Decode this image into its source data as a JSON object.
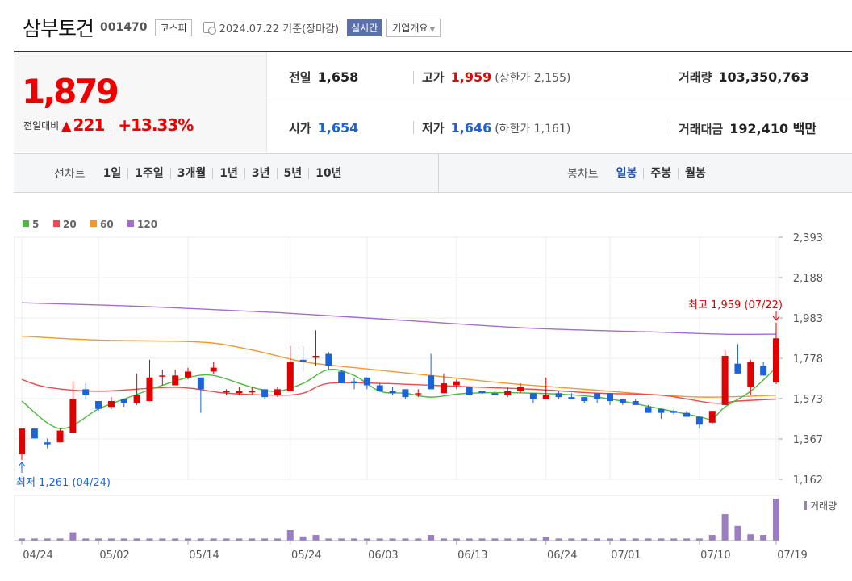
{
  "header": {
    "stock_name": "삼부토건",
    "code": "001470",
    "market": "코스피",
    "date_text": "2024.07.22  기준(장마감)",
    "realtime_button": "실시간",
    "company_button": "기업개요"
  },
  "quote": {
    "price": "1,879",
    "change_label": "전일대비",
    "change_icon": "up-triangle",
    "change_symbol": "▲",
    "change_value": "221",
    "change_percent": "+13.33%",
    "prev_close_label": "전일",
    "prev_close": "1,658",
    "high_label": "고가",
    "high": "1,959",
    "upper_limit": "(상한가 2,155)",
    "volume_label": "거래량",
    "volume": "103,350,763",
    "open_label": "시가",
    "open": "1,654",
    "low_label": "저가",
    "low": "1,646",
    "lower_limit": "(하한가 1,161)",
    "turnover_label": "거래대금",
    "turnover": "192,410 백만",
    "colors": {
      "up": "#e00000",
      "down": "#1a63d8"
    }
  },
  "tabs": {
    "line_label": "선차트",
    "periods": [
      "1일",
      "1주일",
      "3개월",
      "1년",
      "3년",
      "5년",
      "10년"
    ],
    "candle_label": "봉차트",
    "candles": [
      "일봉",
      "주봉",
      "월봉"
    ],
    "selected_candle": "일봉"
  },
  "chart_data": {
    "type": "candlestick",
    "legend": [
      {
        "name": "5",
        "color": "#4cbb3c"
      },
      {
        "name": "20",
        "color": "#ef4a4a"
      },
      {
        "name": "60",
        "color": "#f7962b"
      },
      {
        "name": "120",
        "color": "#a66ad6"
      }
    ],
    "y_ticks": [
      "2,393",
      "2,188",
      "1,983",
      "1,778",
      "1,573",
      "1,367",
      "1,162"
    ],
    "ylim": [
      1162,
      2393
    ],
    "x_ticks": [
      {
        "label": "04/24",
        "idx": 0
      },
      {
        "label": "05/02",
        "idx": 6
      },
      {
        "label": "05/14",
        "idx": 13
      },
      {
        "label": "05/24",
        "idx": 21
      },
      {
        "label": "06/03",
        "idx": 27
      },
      {
        "label": "06/13",
        "idx": 34
      },
      {
        "label": "06/24",
        "idx": 41
      },
      {
        "label": "07/01",
        "idx": 46
      },
      {
        "label": "07/10",
        "idx": 53
      },
      {
        "label": "07/19",
        "idx": 59
      }
    ],
    "candles": [
      [
        1290,
        1420,
        1420,
        1261
      ],
      [
        1420,
        1370,
        1420,
        1370
      ],
      [
        1350,
        1340,
        1370,
        1320
      ],
      [
        1350,
        1410,
        1420,
        1350
      ],
      [
        1400,
        1570,
        1660,
        1400
      ],
      [
        1620,
        1590,
        1650,
        1570
      ],
      [
        1560,
        1520,
        1560,
        1510
      ],
      [
        1530,
        1560,
        1580,
        1520
      ],
      [
        1570,
        1550,
        1570,
        1530
      ],
      [
        1550,
        1590,
        1700,
        1540
      ],
      [
        1560,
        1680,
        1770,
        1560
      ],
      [
        1690,
        1690,
        1720,
        1640
      ],
      [
        1640,
        1690,
        1720,
        1640
      ],
      [
        1680,
        1710,
        1730,
        1670
      ],
      [
        1680,
        1620,
        1680,
        1500
      ],
      [
        1710,
        1730,
        1760,
        1700
      ],
      [
        1610,
        1610,
        1620,
        1590
      ],
      [
        1600,
        1610,
        1630,
        1590
      ],
      [
        1610,
        1610,
        1630,
        1590
      ],
      [
        1620,
        1580,
        1620,
        1570
      ],
      [
        1590,
        1620,
        1630,
        1580
      ],
      [
        1610,
        1760,
        1840,
        1610
      ],
      [
        1770,
        1760,
        1840,
        1710
      ],
      [
        1780,
        1790,
        1920,
        1740
      ],
      [
        1800,
        1740,
        1810,
        1720
      ],
      [
        1710,
        1650,
        1720,
        1650
      ],
      [
        1660,
        1650,
        1680,
        1620
      ],
      [
        1680,
        1640,
        1680,
        1620
      ],
      [
        1640,
        1610,
        1650,
        1610
      ],
      [
        1610,
        1600,
        1630,
        1590
      ],
      [
        1620,
        1580,
        1620,
        1570
      ],
      [
        1600,
        1600,
        1620,
        1580
      ],
      [
        1690,
        1620,
        1800,
        1620
      ],
      [
        1600,
        1650,
        1700,
        1600
      ],
      [
        1640,
        1660,
        1670,
        1620
      ],
      [
        1630,
        1590,
        1630,
        1590
      ],
      [
        1610,
        1600,
        1620,
        1590
      ],
      [
        1600,
        1590,
        1610,
        1590
      ],
      [
        1590,
        1610,
        1630,
        1580
      ],
      [
        1610,
        1630,
        1650,
        1600
      ],
      [
        1600,
        1570,
        1600,
        1550
      ],
      [
        1570,
        1590,
        1680,
        1570
      ],
      [
        1600,
        1580,
        1610,
        1570
      ],
      [
        1580,
        1570,
        1600,
        1570
      ],
      [
        1580,
        1560,
        1580,
        1550
      ],
      [
        1600,
        1570,
        1600,
        1550
      ],
      [
        1600,
        1560,
        1600,
        1540
      ],
      [
        1570,
        1550,
        1570,
        1540
      ],
      [
        1560,
        1540,
        1570,
        1540
      ],
      [
        1530,
        1500,
        1540,
        1500
      ],
      [
        1520,
        1500,
        1520,
        1470
      ],
      [
        1510,
        1500,
        1520,
        1490
      ],
      [
        1500,
        1480,
        1510,
        1480
      ],
      [
        1480,
        1440,
        1480,
        1420
      ],
      [
        1450,
        1510,
        1510,
        1440
      ],
      [
        1540,
        1790,
        1820,
        1540
      ],
      [
        1750,
        1700,
        1850,
        1700
      ],
      [
        1630,
        1760,
        1770,
        1590
      ],
      [
        1740,
        1690,
        1760,
        1690
      ],
      [
        1654,
        1879,
        1959,
        1646
      ]
    ],
    "annotations": {
      "high": "최고 1,959 (07/22)",
      "low": "최저 1,261 (04/24)"
    },
    "ma_anchors": {
      "ma5": [
        [
          0,
          1560
        ],
        [
          3,
          1420
        ],
        [
          6,
          1520
        ],
        [
          8,
          1570
        ],
        [
          11,
          1640
        ],
        [
          13,
          1680
        ],
        [
          15,
          1690
        ],
        [
          18,
          1630
        ],
        [
          20,
          1610
        ],
        [
          22,
          1650
        ],
        [
          24,
          1720
        ],
        [
          26,
          1690
        ],
        [
          28,
          1610
        ],
        [
          30,
          1600
        ],
        [
          32,
          1580
        ],
        [
          35,
          1600
        ],
        [
          40,
          1600
        ],
        [
          45,
          1580
        ],
        [
          50,
          1520
        ],
        [
          53,
          1480
        ],
        [
          54,
          1470
        ],
        [
          55,
          1530
        ],
        [
          57,
          1610
        ],
        [
          59,
          1730
        ]
      ],
      "ma20": [
        [
          0,
          1670
        ],
        [
          2,
          1630
        ],
        [
          6,
          1610
        ],
        [
          12,
          1630
        ],
        [
          16,
          1600
        ],
        [
          20,
          1590
        ],
        [
          22,
          1600
        ],
        [
          24,
          1650
        ],
        [
          28,
          1650
        ],
        [
          32,
          1640
        ],
        [
          36,
          1630
        ],
        [
          40,
          1620
        ],
        [
          45,
          1600
        ],
        [
          50,
          1590
        ],
        [
          54,
          1550
        ],
        [
          56,
          1560
        ],
        [
          59,
          1570
        ]
      ],
      "ma60": [
        [
          0,
          1890
        ],
        [
          6,
          1870
        ],
        [
          14,
          1860
        ],
        [
          18,
          1820
        ],
        [
          22,
          1760
        ],
        [
          26,
          1730
        ],
        [
          32,
          1690
        ],
        [
          38,
          1650
        ],
        [
          44,
          1620
        ],
        [
          50,
          1590
        ],
        [
          54,
          1580
        ],
        [
          59,
          1590
        ]
      ],
      "ma120": [
        [
          0,
          2060
        ],
        [
          10,
          2040
        ],
        [
          20,
          2010
        ],
        [
          30,
          1970
        ],
        [
          40,
          1930
        ],
        [
          50,
          1910
        ],
        [
          55,
          1900
        ],
        [
          59,
          1900
        ]
      ]
    },
    "volume_label": "거래량",
    "volume": [
      3,
      3,
      3,
      3,
      12,
      3,
      3,
      3,
      3,
      3,
      3,
      3,
      3,
      3,
      3,
      3,
      3,
      3,
      3,
      3,
      3,
      15,
      6,
      8,
      3,
      3,
      3,
      3,
      3,
      3,
      3,
      3,
      8,
      3,
      3,
      3,
      3,
      3,
      3,
      3,
      3,
      5,
      3,
      3,
      3,
      3,
      3,
      3,
      3,
      3,
      3,
      3,
      3,
      3,
      8,
      38,
      21,
      9,
      8,
      60
    ]
  }
}
